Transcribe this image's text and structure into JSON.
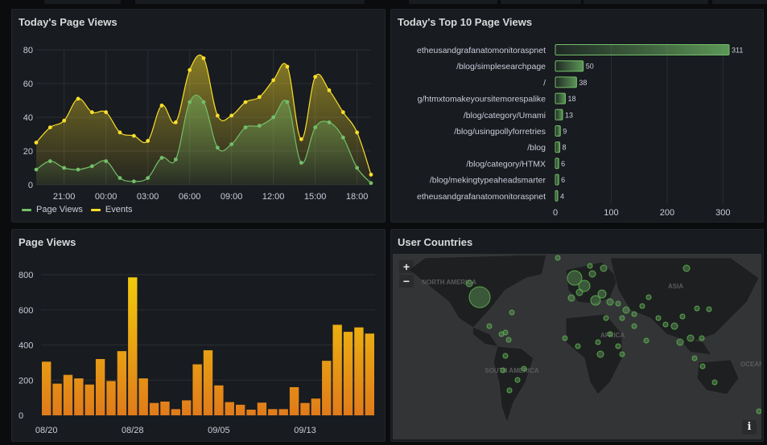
{
  "dashboard": {
    "panels": {
      "today_page_views": {
        "title": "Today's Page Views"
      },
      "top10": {
        "title": "Today's Top 10 Page Views"
      },
      "page_views": {
        "title": "Page Views"
      },
      "user_countries": {
        "title": "User Countries",
        "zoom_in_label": "+",
        "zoom_out_label": "−",
        "info_label": "i",
        "map_labels": [
          "NORTH AMERICA",
          "ASIA",
          "AFRICA",
          "SOUTH AMERICA",
          "OCEANIA"
        ]
      }
    }
  },
  "chart_data": [
    {
      "type": "line",
      "title": "Today's Page Views",
      "xlabel": "",
      "ylabel": "",
      "ylim": [
        0,
        80
      ],
      "yticks": [
        "0",
        "20",
        "40",
        "60",
        "80"
      ],
      "xticks": [
        "21:00",
        "00:00",
        "03:00",
        "06:00",
        "09:00",
        "12:00",
        "15:00",
        "18:00"
      ],
      "grid": true,
      "legend_position": "bottom-left",
      "x": [
        "19:00",
        "20:00",
        "21:00",
        "22:00",
        "23:00",
        "00:00",
        "01:00",
        "02:00",
        "03:00",
        "04:00",
        "05:00",
        "06:00",
        "07:00",
        "08:00",
        "09:00",
        "10:00",
        "11:00",
        "12:00",
        "13:00",
        "14:00",
        "15:00",
        "16:00",
        "17:00",
        "18:00",
        "19:00"
      ],
      "series": [
        {
          "name": "Page Views",
          "color": "#73bf69",
          "values": [
            9,
            14,
            10,
            9,
            11,
            14,
            4,
            2,
            4,
            16,
            15,
            49,
            49,
            22,
            24,
            34,
            35,
            40,
            49,
            13,
            34,
            37,
            28,
            10,
            1
          ]
        },
        {
          "name": "Events",
          "color": "#fade2a",
          "values": [
            25,
            34,
            38,
            51,
            43,
            43,
            31,
            29,
            26,
            47,
            37,
            68,
            75,
            41,
            41,
            49,
            52,
            62,
            70,
            27,
            64,
            56,
            43,
            31,
            6
          ]
        }
      ]
    },
    {
      "type": "bar",
      "orientation": "horizontal",
      "title": "Today's Top 10 Page Views",
      "categories": [
        "etheusandgrafanatomonitoraspnet",
        "/blog/simplesearchpage",
        "/",
        "g/htmxtomakeyoursitemorespalike",
        "/blog/category/Umami",
        "/blog/usingpollyforretries",
        "/blog",
        "/blog/category/HTMX",
        "/blog/mekingtypeaheadsmarter",
        "etheusandgrafanatomonitoraspnet"
      ],
      "values": [
        311,
        50,
        38,
        18,
        13,
        9,
        8,
        6,
        6,
        4
      ],
      "value_labels": [
        "311",
        "50",
        "38",
        "18",
        "13",
        "9",
        "8",
        "6",
        "6",
        "4"
      ],
      "xticks": [
        "0",
        "100",
        "200",
        "300"
      ],
      "xlim": [
        0,
        340
      ],
      "color": "#73bf69",
      "grid": true
    },
    {
      "type": "bar",
      "title": "Page Views",
      "xlabel": "",
      "ylabel": "",
      "ylim": [
        0,
        800
      ],
      "yticks": [
        "0",
        "200",
        "400",
        "600",
        "800"
      ],
      "xticks": [
        "08/20",
        "08/28",
        "09/05",
        "09/13"
      ],
      "categories": [
        "08/20",
        "08/21",
        "08/22",
        "08/23",
        "08/24",
        "08/25",
        "08/26",
        "08/27",
        "08/28",
        "08/29",
        "08/30",
        "08/31",
        "09/01",
        "09/02",
        "09/03",
        "09/04",
        "09/05",
        "09/06",
        "09/07",
        "09/08",
        "09/09",
        "09/10",
        "09/11",
        "09/12",
        "09/13",
        "09/14",
        "09/15",
        "09/16",
        "09/17",
        "09/18",
        "09/19"
      ],
      "values": [
        305,
        180,
        230,
        210,
        175,
        320,
        195,
        365,
        785,
        210,
        70,
        78,
        35,
        85,
        290,
        370,
        170,
        75,
        60,
        32,
        72,
        35,
        35,
        160,
        70,
        95,
        310,
        515,
        475,
        500,
        465
      ],
      "color_gradient": [
        "#e07b1a",
        "#f2cc0c"
      ],
      "grid": true
    }
  ]
}
